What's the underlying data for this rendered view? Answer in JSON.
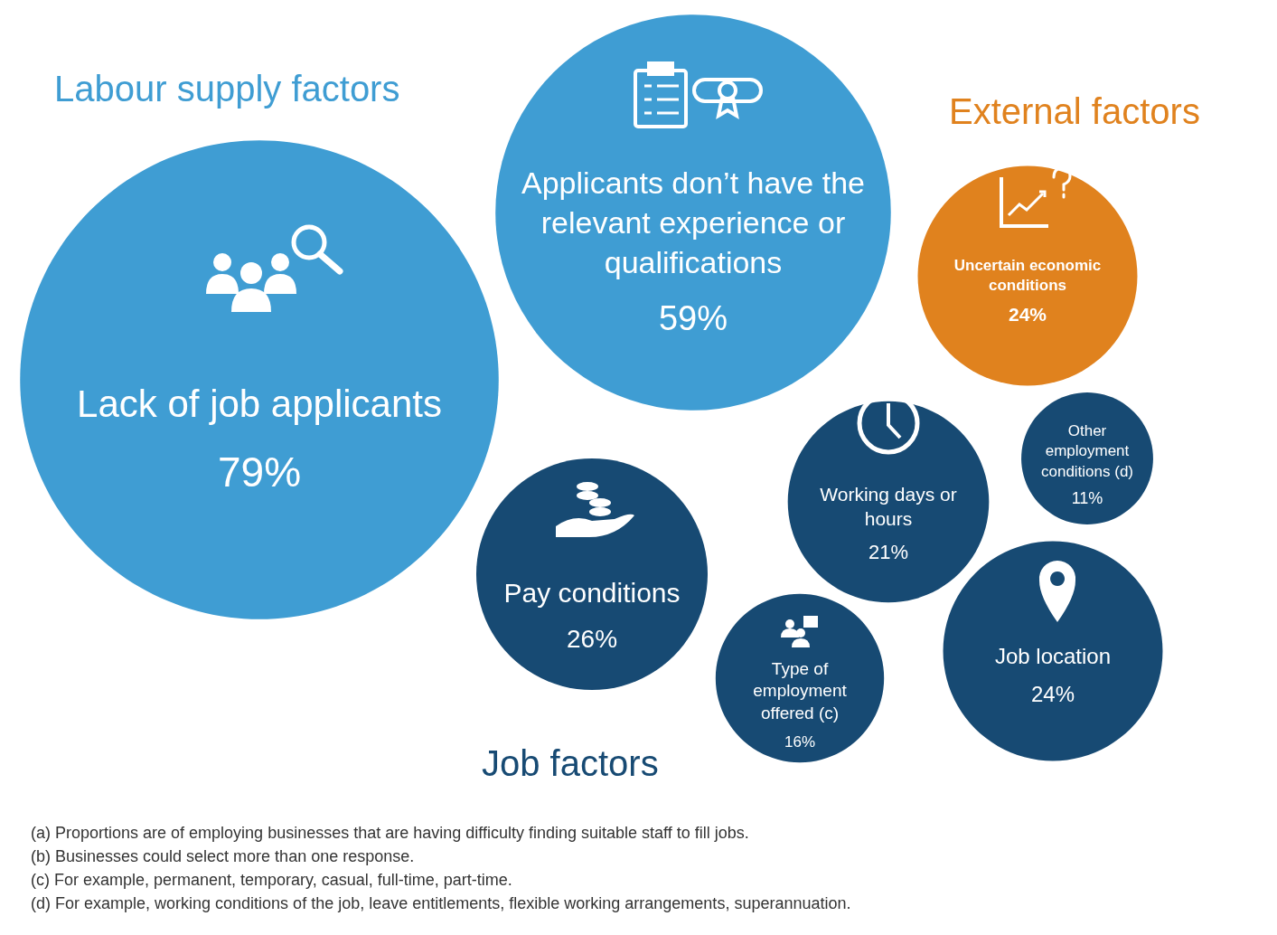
{
  "chart_data": {
    "type": "other",
    "categories": [
      "Lack of job applicants",
      "Applicants don’t have the relevant experience or qualifications",
      "Uncertain economic conditions",
      "Pay conditions",
      "Working days or hours",
      "Other employment conditions (d)",
      "Type of employment offered (c)",
      "Job location"
    ],
    "series": [
      {
        "name": "Labour supply factors",
        "color": "#3f9dd3",
        "values": [
          79,
          59,
          null,
          null,
          null,
          null,
          null,
          null
        ],
        "value_labels": [
          "79%",
          "59%",
          null,
          null,
          null,
          null,
          null,
          null
        ]
      },
      {
        "name": "External factors",
        "color": "#e0821e",
        "values": [
          null,
          null,
          24,
          null,
          null,
          null,
          null,
          null
        ],
        "value_labels": [
          null,
          null,
          "24%",
          null,
          null,
          null,
          null,
          null
        ]
      },
      {
        "name": "Job factors",
        "color": "#174a73",
        "values": [
          null,
          null,
          null,
          26,
          21,
          11,
          16,
          24
        ],
        "value_labels": [
          null,
          null,
          null,
          "26%",
          "21%",
          "11%",
          "16%",
          "24%"
        ]
      }
    ],
    "annotations": [
      "(a) Proportions are of employing businesses that are having difficulty finding suitable staff to fill jobs.",
      "(b) Businesses could select more than one response.",
      "(c) For example, permanent, temporary, casual, full-time, part-time.",
      "(d) For example, working conditions of the job, leave entitlements, flexible working arrangements, superannuation."
    ]
  }
}
